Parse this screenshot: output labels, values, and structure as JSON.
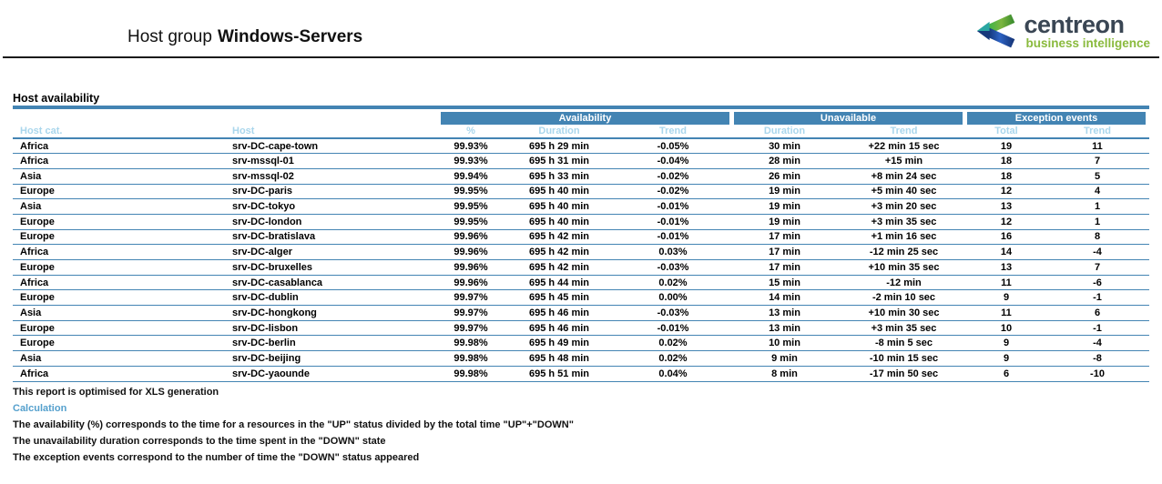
{
  "header": {
    "title_prefix": "Host group",
    "title_bold": "Windows-Servers",
    "logo": {
      "brand": "centreon",
      "tagline": "business intelligence"
    }
  },
  "section": {
    "title": "Host availability"
  },
  "table": {
    "group_headers": [
      {
        "label": "Availability"
      },
      {
        "label": "Unavailable"
      },
      {
        "label": "Exception events"
      }
    ],
    "columns": [
      "Host cat.",
      "Host",
      "%",
      "Duration",
      "Trend",
      "Duration",
      "Trend",
      "Total",
      "Trend"
    ],
    "rows": [
      [
        "Africa",
        "srv-DC-cape-town",
        "99.93%",
        "695 h 29 min",
        "-0.05%",
        "30 min",
        "+22 min 15 sec",
        "19",
        "11"
      ],
      [
        "Africa",
        "srv-mssql-01",
        "99.93%",
        "695 h 31 min",
        "-0.04%",
        "28 min",
        "+15 min",
        "18",
        "7"
      ],
      [
        "Asia",
        "srv-mssql-02",
        "99.94%",
        "695 h 33 min",
        "-0.02%",
        "26 min",
        "+8 min 24 sec",
        "18",
        "5"
      ],
      [
        "Europe",
        "srv-DC-paris",
        "99.95%",
        "695 h 40 min",
        "-0.02%",
        "19 min",
        "+5 min 40 sec",
        "12",
        "4"
      ],
      [
        "Asia",
        "srv-DC-tokyo",
        "99.95%",
        "695 h 40 min",
        "-0.01%",
        "19 min",
        "+3 min 20 sec",
        "13",
        "1"
      ],
      [
        "Europe",
        "srv-DC-london",
        "99.95%",
        "695 h 40 min",
        "-0.01%",
        "19 min",
        "+3 min 35 sec",
        "12",
        "1"
      ],
      [
        "Europe",
        "srv-DC-bratislava",
        "99.96%",
        "695 h 42 min",
        "-0.01%",
        "17 min",
        "+1 min 16 sec",
        "16",
        "8"
      ],
      [
        "Africa",
        "srv-DC-alger",
        "99.96%",
        "695 h 42 min",
        "0.03%",
        "17 min",
        "-12 min 25 sec",
        "14",
        "-4"
      ],
      [
        "Europe",
        "srv-DC-bruxelles",
        "99.96%",
        "695 h 42 min",
        "-0.03%",
        "17 min",
        "+10 min 35 sec",
        "13",
        "7"
      ],
      [
        "Africa",
        "srv-DC-casablanca",
        "99.96%",
        "695 h 44 min",
        "0.02%",
        "15 min",
        "-12 min",
        "11",
        "-6"
      ],
      [
        "Europe",
        "srv-DC-dublin",
        "99.97%",
        "695 h 45 min",
        "0.00%",
        "14 min",
        "-2 min 10 sec",
        "9",
        "-1"
      ],
      [
        "Asia",
        "srv-DC-hongkong",
        "99.97%",
        "695 h 46 min",
        "-0.03%",
        "13 min",
        "+10 min 30 sec",
        "11",
        "6"
      ],
      [
        "Europe",
        "srv-DC-lisbon",
        "99.97%",
        "695 h 46 min",
        "-0.01%",
        "13 min",
        "+3 min 35 sec",
        "10",
        "-1"
      ],
      [
        "Europe",
        "srv-DC-berlin",
        "99.98%",
        "695 h 49 min",
        "0.02%",
        "10 min",
        "-8 min 5 sec",
        "9",
        "-4"
      ],
      [
        "Asia",
        "srv-DC-beijing",
        "99.98%",
        "695 h 48 min",
        "0.02%",
        "9 min",
        "-10 min 15 sec",
        "9",
        "-8"
      ],
      [
        "Africa",
        "srv-DC-yaounde",
        "99.98%",
        "695 h 51 min",
        "0.04%",
        "8 min",
        "-17 min 50 sec",
        "6",
        "-10"
      ]
    ]
  },
  "footer": {
    "note": "This report is optimised for XLS generation",
    "calculation_title": "Calculation",
    "lines": [
      "The availability (%) corresponds to the time for a resources in the \"UP\" status divided by the total time \"UP\"+\"DOWN\"",
      "The unavailability duration corresponds to the time spent in the \"DOWN\" state",
      "The exception events correspond to the number of time the \"DOWN\" status appeared"
    ]
  },
  "colors": {
    "bar_blue": "#4384b3",
    "header_text_light_blue": "#a9d6ec",
    "calculation_blue": "#55a0cd",
    "logo_dark": "#3a4654",
    "logo_green": "#8aba3d",
    "logo_teal": "#2aa6a2",
    "logo_navy": "#17387c",
    "logo_royal": "#2d62c3"
  }
}
